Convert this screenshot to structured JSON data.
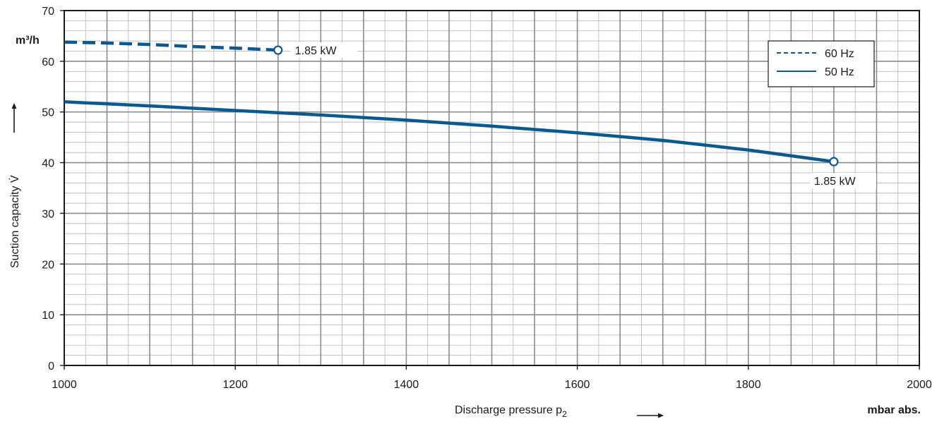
{
  "chart_data": {
    "type": "line",
    "xlabel": "Discharge pressure p",
    "xlabel_sub": "2",
    "ylabel": "Suction capacity V̇",
    "x_unit": "mbar abs.",
    "y_unit": "m³/h",
    "xlim": [
      1000,
      2000
    ],
    "ylim": [
      0,
      70
    ],
    "x_ticks": [
      1000,
      1200,
      1400,
      1600,
      1800,
      2000
    ],
    "y_ticks": [
      0,
      10,
      20,
      30,
      40,
      50,
      60,
      70
    ],
    "grid": true,
    "legend_position": "top-right",
    "series": [
      {
        "name": "60 Hz",
        "style": "dashed",
        "color": "#0a5a8f",
        "x": [
          1000,
          1050,
          1100,
          1150,
          1200,
          1250
        ],
        "y": [
          63.8,
          63.6,
          63.3,
          62.9,
          62.6,
          62.2
        ],
        "end_label": "1.85 kW"
      },
      {
        "name": "50 Hz",
        "style": "solid",
        "color": "#0a5a8f",
        "x": [
          1000,
          1100,
          1200,
          1300,
          1400,
          1500,
          1600,
          1700,
          1800,
          1900
        ],
        "y": [
          52.0,
          51.2,
          50.3,
          49.4,
          48.4,
          47.2,
          45.9,
          44.4,
          42.5,
          40.2
        ],
        "end_label": "1.85 kW"
      }
    ]
  }
}
